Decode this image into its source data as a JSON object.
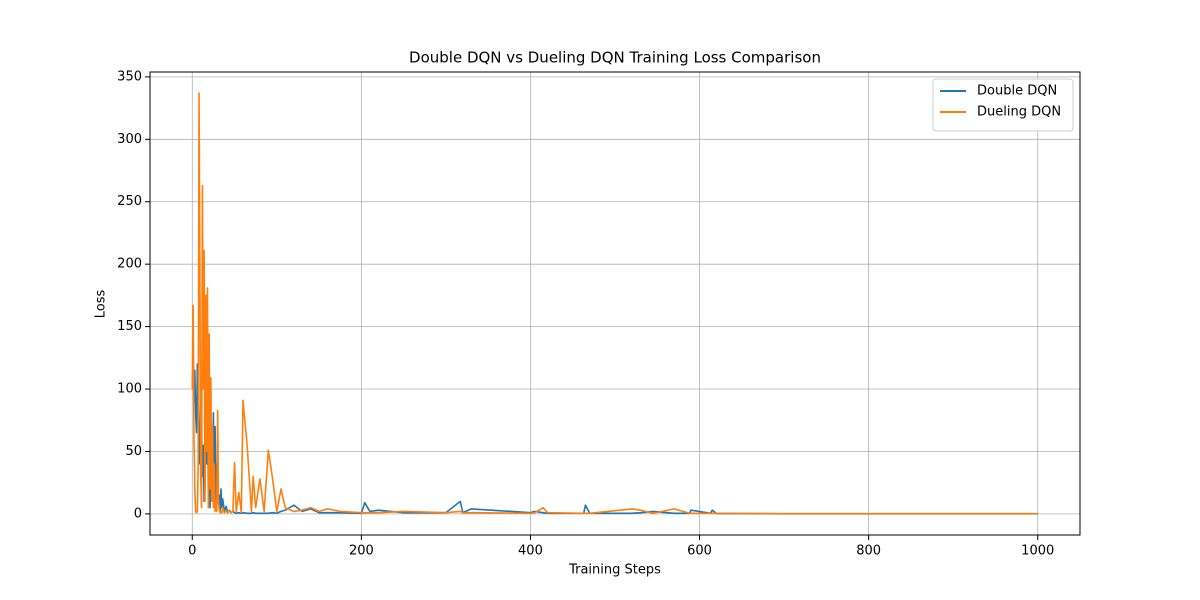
{
  "chart_data": {
    "type": "line",
    "title": "Double DQN vs Dueling DQN Training Loss Comparison",
    "xlabel": "Training Steps",
    "ylabel": "Loss",
    "x": [
      0,
      1,
      2,
      3,
      4,
      5,
      6,
      7,
      8,
      9,
      10,
      11,
      12,
      13,
      14,
      15,
      16,
      17,
      18,
      19,
      20,
      21,
      22,
      23,
      24,
      25,
      26,
      27,
      28,
      29,
      30,
      31,
      32,
      33,
      34,
      35,
      36,
      38,
      40,
      42,
      44,
      46,
      48,
      50,
      52,
      55,
      58,
      60,
      65,
      70,
      72,
      75,
      80,
      85,
      90,
      95,
      100,
      105,
      110,
      120,
      130,
      140,
      150,
      160,
      175,
      200,
      204,
      210,
      220,
      250,
      300,
      317,
      320,
      330,
      400,
      405,
      415,
      420,
      463,
      465,
      470,
      520,
      530,
      545,
      570,
      588,
      590,
      613,
      615,
      620,
      700,
      1000
    ],
    "series": [
      {
        "name": "Double DQN",
        "color": "#1f77b4",
        "values": [
          100,
          128,
          90,
          115,
          80,
          65,
          120,
          90,
          60,
          40,
          110,
          70,
          30,
          55,
          10,
          20,
          85,
          40,
          100,
          15,
          60,
          5,
          30,
          45,
          12,
          81,
          20,
          70,
          5,
          40,
          25,
          8,
          15,
          3,
          20,
          5,
          12,
          2,
          6,
          1,
          3,
          1,
          2,
          1,
          0.5,
          1,
          0.5,
          1,
          0.5,
          0.5,
          1,
          0.5,
          0.5,
          0.5,
          0.5,
          1,
          0.5,
          2,
          3,
          7,
          2,
          4,
          1,
          1,
          1,
          0.5,
          9,
          2,
          3,
          1,
          1,
          10,
          1,
          4,
          1,
          2,
          1,
          0.5,
          0.5,
          7,
          0.5,
          0.5,
          1,
          2,
          0.5,
          0.5,
          3,
          0.5,
          3,
          0.3,
          0.1,
          0.1
        ]
      },
      {
        "name": "Dueling DQN",
        "color": "#ff7f0e",
        "values": [
          100,
          167,
          60,
          20,
          2,
          1,
          2,
          40,
          337,
          200,
          30,
          5,
          263,
          100,
          211,
          10,
          175,
          50,
          181,
          5,
          144,
          20,
          109,
          10,
          70,
          5,
          40,
          2,
          10,
          2,
          83,
          10,
          3,
          1,
          2,
          1,
          5,
          1,
          2,
          1,
          3,
          1,
          2,
          41,
          2,
          17,
          1,
          91,
          54,
          2,
          30,
          5,
          28,
          2,
          51,
          28,
          2,
          20,
          5,
          2,
          3,
          5,
          2,
          4,
          2,
          1,
          1,
          1,
          1,
          2,
          1,
          2,
          1,
          1,
          0.5,
          1,
          5,
          1,
          0.5,
          0.5,
          0.5,
          4,
          3,
          0.5,
          4,
          0.5,
          0.5,
          0.5,
          0.5,
          0.5,
          0.2,
          0.2
        ]
      }
    ],
    "xlim": [
      -50,
      1050
    ],
    "ylim": [
      -16.9,
      353.9
    ],
    "xticks": [
      0,
      200,
      400,
      600,
      800,
      1000
    ],
    "yticks": [
      0,
      50,
      100,
      150,
      200,
      250,
      300,
      350
    ],
    "grid": true,
    "legend": "upper right"
  }
}
